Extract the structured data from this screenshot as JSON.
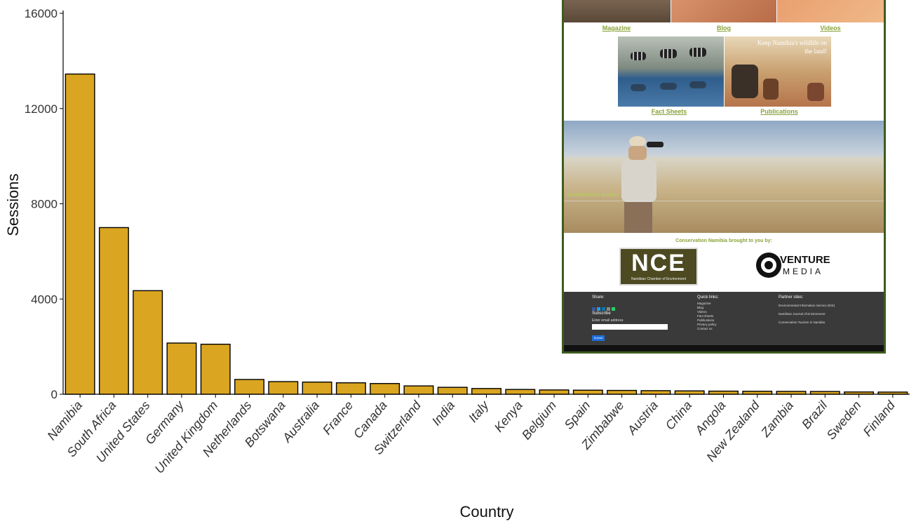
{
  "chart_data": {
    "type": "bar",
    "xlabel": "Country",
    "ylabel": "Sessions",
    "ylim": [
      0,
      16000
    ],
    "yticks": [
      0,
      4000,
      8000,
      12000,
      16000
    ],
    "categories": [
      "Namibia",
      "South Africa",
      "United States",
      "Germany",
      "United Kingdom",
      "Netherlands",
      "Botswana",
      "Australia",
      "France",
      "Canada",
      "Switzerland",
      "India",
      "Italy",
      "Kenya",
      "Belgium",
      "Spain",
      "Zimbabwe",
      "Austria",
      "China",
      "Angola",
      "New Zealand",
      "Zambia",
      "Brazil",
      "Sweden",
      "Finland"
    ],
    "values": [
      13450,
      7000,
      4350,
      2150,
      2100,
      620,
      530,
      510,
      480,
      450,
      350,
      290,
      240,
      200,
      180,
      170,
      160,
      150,
      140,
      130,
      125,
      120,
      115,
      95,
      90
    ],
    "bar_color": "#DAA520",
    "grid": false
  },
  "inset": {
    "nav": {
      "magazine": "Magazine",
      "blog": "Blog",
      "videos": "Videos"
    },
    "tiles": {
      "fact_sheets": "Fact Sheets",
      "publications": "Publications",
      "wildlife_caption": "Keep Namibia's wildlife on the land!"
    },
    "banner": {
      "brand": "CONSERVATION NAMIBIA"
    },
    "sponsors": {
      "heading": "Conservation Namibia brought to you by:",
      "nce": "NCE",
      "nce_sub": "Namibian Chamber of Environment",
      "venture_1": "VENTURE",
      "venture_2": "MEDIA"
    },
    "footer": {
      "share": "Share:",
      "subscribe": "Subscribe",
      "email_label": "Enter email address",
      "submit": "Submit",
      "quick_links": "Quick links:",
      "links": [
        "Magazine",
        "Blog",
        "Videos",
        "Fact sheets",
        "Publications",
        "Privacy policy",
        "Contact us"
      ],
      "partner_sites": "Partner sites:",
      "partners": [
        "Environmental Information Service (EIS)",
        "Namibian Journal of Environment",
        "Conservation Tourism in Namibia"
      ]
    },
    "colors": {
      "accent": "#8aa23a",
      "footer_bg": "#3a3a3a"
    }
  }
}
